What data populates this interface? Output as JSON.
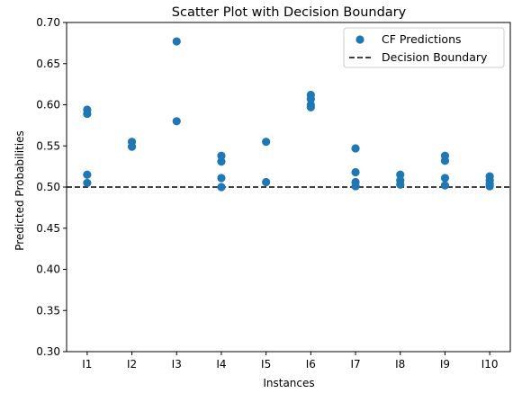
{
  "chart_data": {
    "type": "scatter",
    "title": "Scatter Plot with Decision Boundary",
    "xlabel": "Instances",
    "ylabel": "Predicted Probabilities",
    "categories": [
      "I1",
      "I2",
      "I3",
      "I4",
      "I5",
      "I6",
      "I7",
      "I8",
      "I9",
      "I10"
    ],
    "ylim": [
      0.3,
      0.7
    ],
    "yticks": [
      "0.30",
      "0.35",
      "0.40",
      "0.45",
      "0.50",
      "0.55",
      "0.60",
      "0.65",
      "0.70"
    ],
    "grid": false,
    "legend_position": "top-right",
    "series": [
      {
        "name": "CF Predictions",
        "color": "#1f77b4",
        "points": [
          {
            "x": "I1",
            "y": 0.594
          },
          {
            "x": "I1",
            "y": 0.589
          },
          {
            "x": "I1",
            "y": 0.515
          },
          {
            "x": "I1",
            "y": 0.505
          },
          {
            "x": "I2",
            "y": 0.555
          },
          {
            "x": "I2",
            "y": 0.549
          },
          {
            "x": "I3",
            "y": 0.677
          },
          {
            "x": "I3",
            "y": 0.58
          },
          {
            "x": "I4",
            "y": 0.538
          },
          {
            "x": "I4",
            "y": 0.531
          },
          {
            "x": "I4",
            "y": 0.511
          },
          {
            "x": "I4",
            "y": 0.5
          },
          {
            "x": "I5",
            "y": 0.555
          },
          {
            "x": "I5",
            "y": 0.506
          },
          {
            "x": "I6",
            "y": 0.612
          },
          {
            "x": "I6",
            "y": 0.607
          },
          {
            "x": "I6",
            "y": 0.6
          },
          {
            "x": "I6",
            "y": 0.597
          },
          {
            "x": "I7",
            "y": 0.547
          },
          {
            "x": "I7",
            "y": 0.518
          },
          {
            "x": "I7",
            "y": 0.506
          },
          {
            "x": "I7",
            "y": 0.501
          },
          {
            "x": "I8",
            "y": 0.515
          },
          {
            "x": "I8",
            "y": 0.508
          },
          {
            "x": "I8",
            "y": 0.503
          },
          {
            "x": "I9",
            "y": 0.538
          },
          {
            "x": "I9",
            "y": 0.532
          },
          {
            "x": "I9",
            "y": 0.511
          },
          {
            "x": "I9",
            "y": 0.502
          },
          {
            "x": "I10",
            "y": 0.513
          },
          {
            "x": "I10",
            "y": 0.508
          },
          {
            "x": "I10",
            "y": 0.504
          },
          {
            "x": "I10",
            "y": 0.501
          }
        ]
      }
    ],
    "reference_line": {
      "name": "Decision Boundary",
      "y": 0.5,
      "style": "dashed",
      "color": "#000000"
    }
  }
}
